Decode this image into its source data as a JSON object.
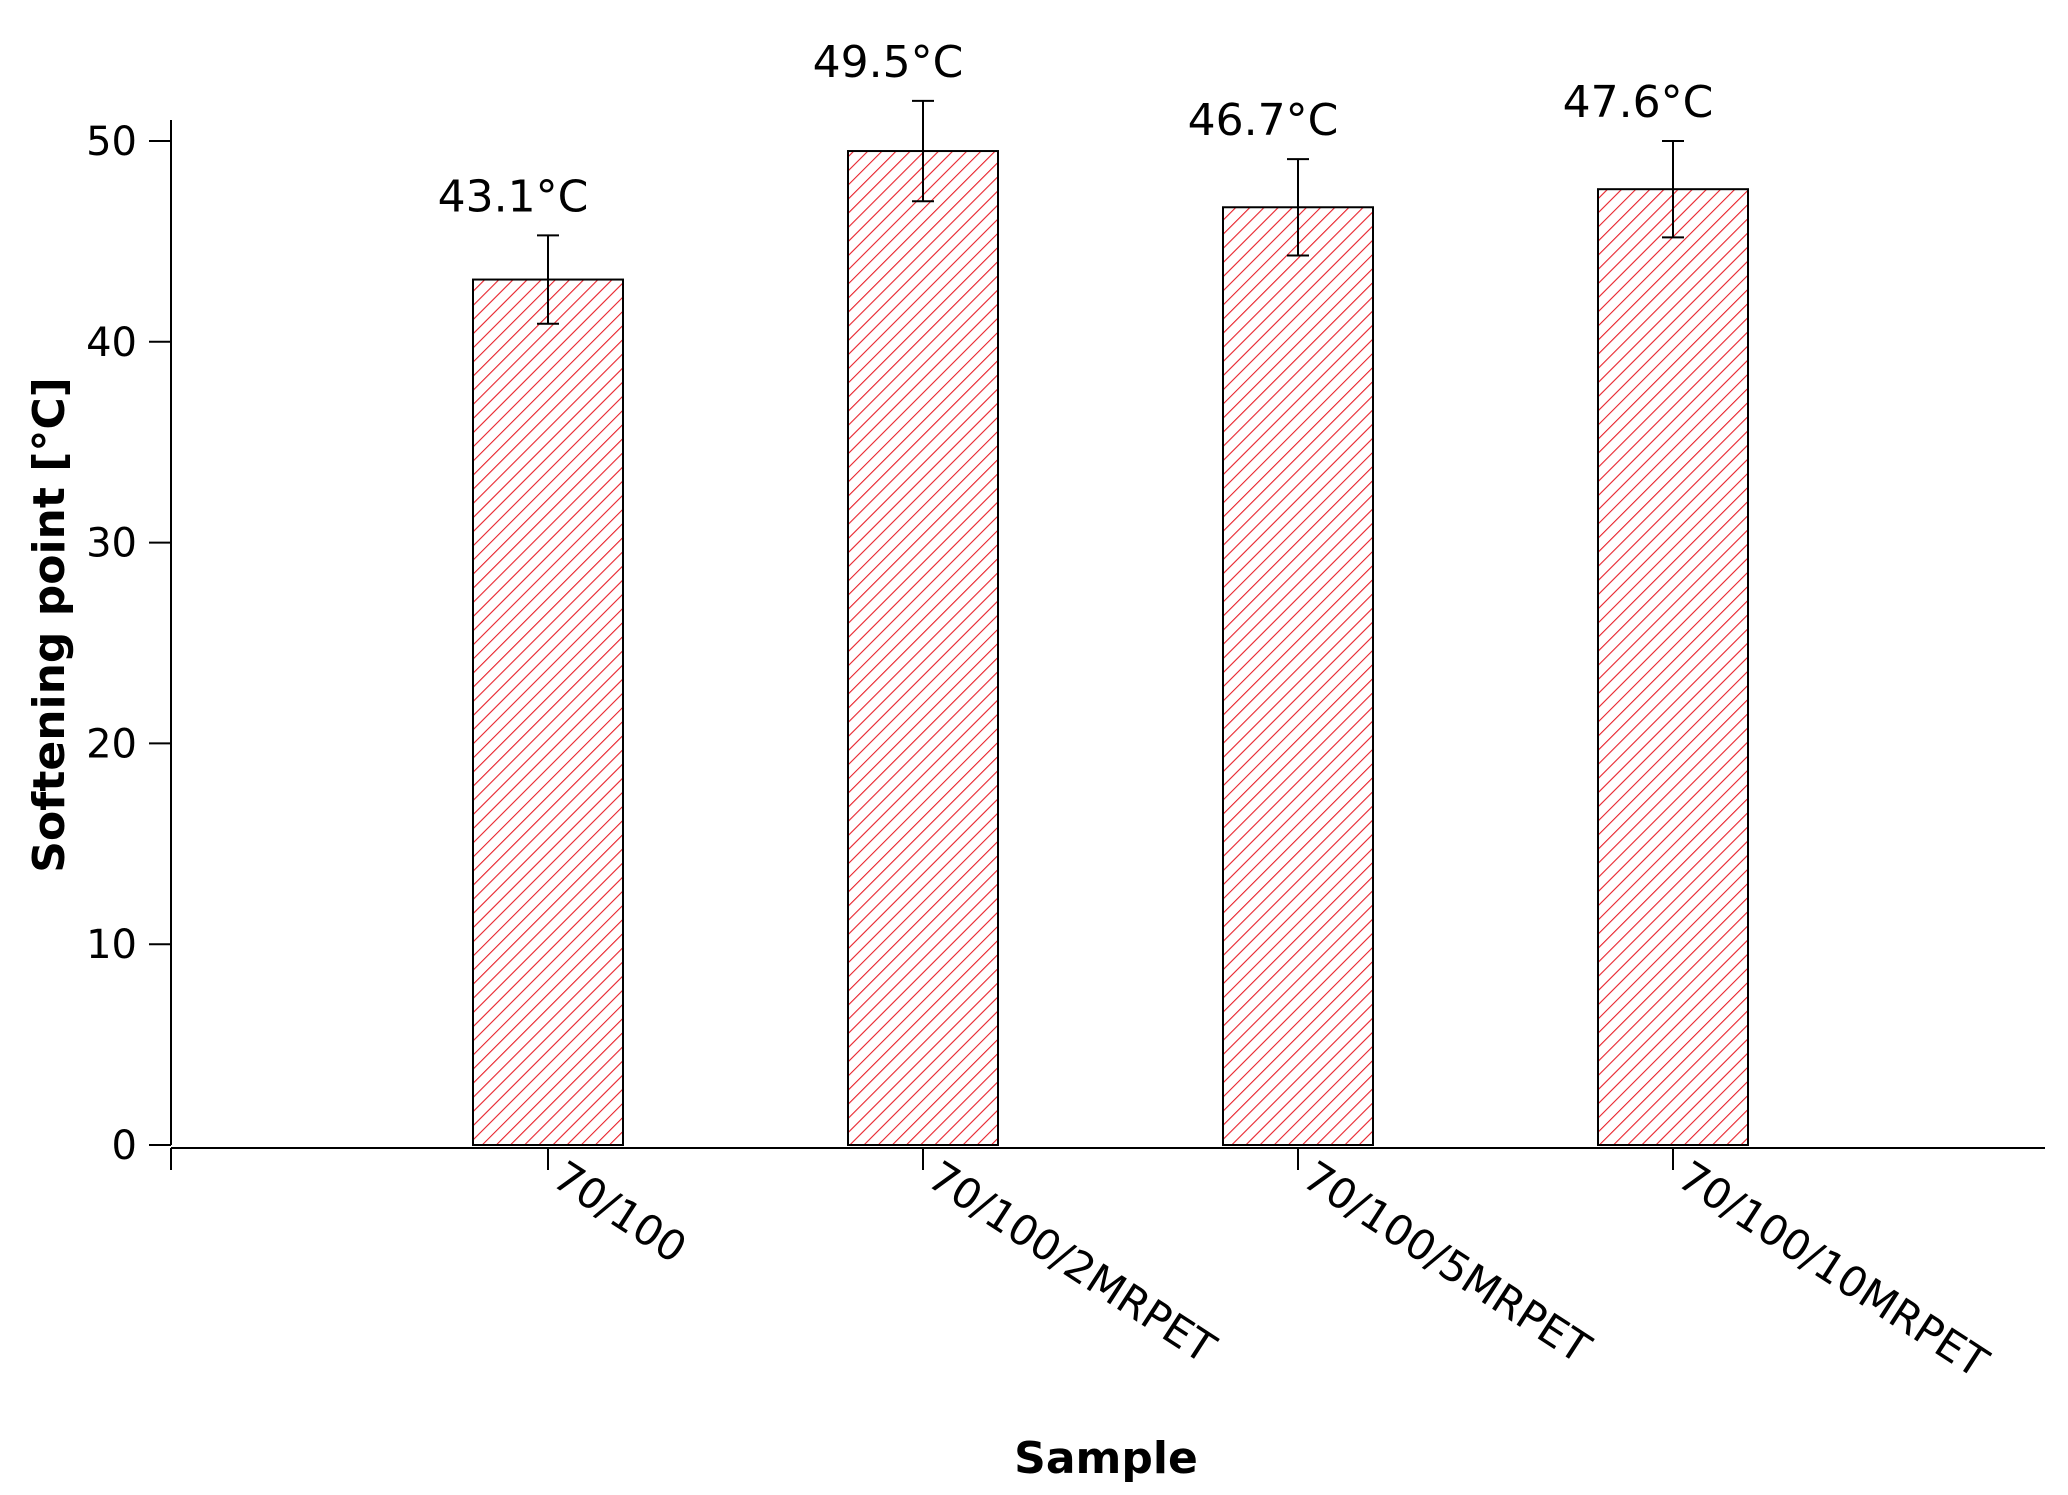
{
  "chart_data": {
    "type": "bar",
    "categories": [
      "70/100",
      "70/100/2MRPET",
      "70/100/5MRPET",
      "70/100/10MRPET"
    ],
    "values": [
      43.1,
      49.5,
      46.7,
      47.6
    ],
    "error": [
      2.2,
      2.5,
      2.4,
      2.4
    ],
    "data_labels": [
      "43.1°C",
      "49.5°C",
      "46.7°C",
      "47.6°C"
    ],
    "xlabel": "Sample",
    "ylabel": "Softening point [°C]",
    "ylim": [
      0,
      50
    ],
    "yticks": [
      0,
      10,
      20,
      30,
      40,
      50
    ],
    "grid": false,
    "bar_fill_pattern": "red diagonal hatch",
    "hatch_color": "#e8202a",
    "bar_edge_color": "#000000"
  }
}
